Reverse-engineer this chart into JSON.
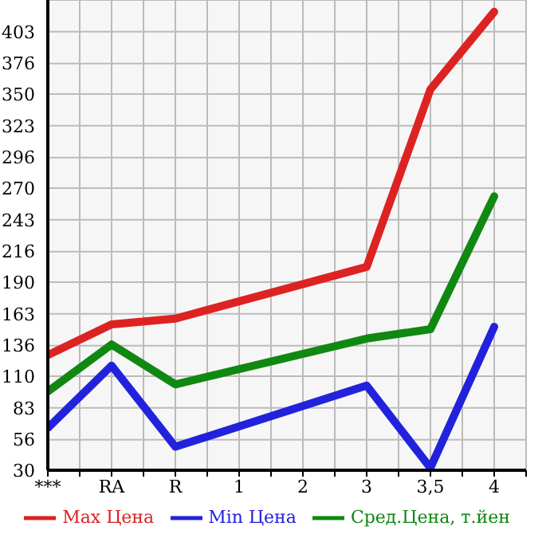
{
  "chart_data": {
    "type": "line",
    "categories": [
      "***",
      "RA",
      "R",
      "1",
      "2",
      "3",
      "3,5",
      "4"
    ],
    "series": [
      {
        "name": "Max Цена",
        "color": "#dd2222",
        "values": [
          128,
          154,
          159,
          null,
          null,
          203,
          354,
          420
        ]
      },
      {
        "name": "Min Цена",
        "color": "#2222dd",
        "values": [
          66,
          119,
          50,
          null,
          null,
          102,
          32,
          152
        ]
      },
      {
        "name": "Сред.Цена, т.йен",
        "color": "#118811",
        "values": [
          97,
          137,
          103,
          null,
          null,
          142,
          150,
          263
        ]
      }
    ],
    "ylim": [
      30,
      430
    ],
    "yticks": [
      30,
      56,
      83,
      110,
      136,
      163,
      190,
      216,
      243,
      270,
      296,
      323,
      350,
      376,
      403
    ],
    "grid": true,
    "legend": "bottom",
    "marker": "none",
    "line_style": "solid"
  }
}
